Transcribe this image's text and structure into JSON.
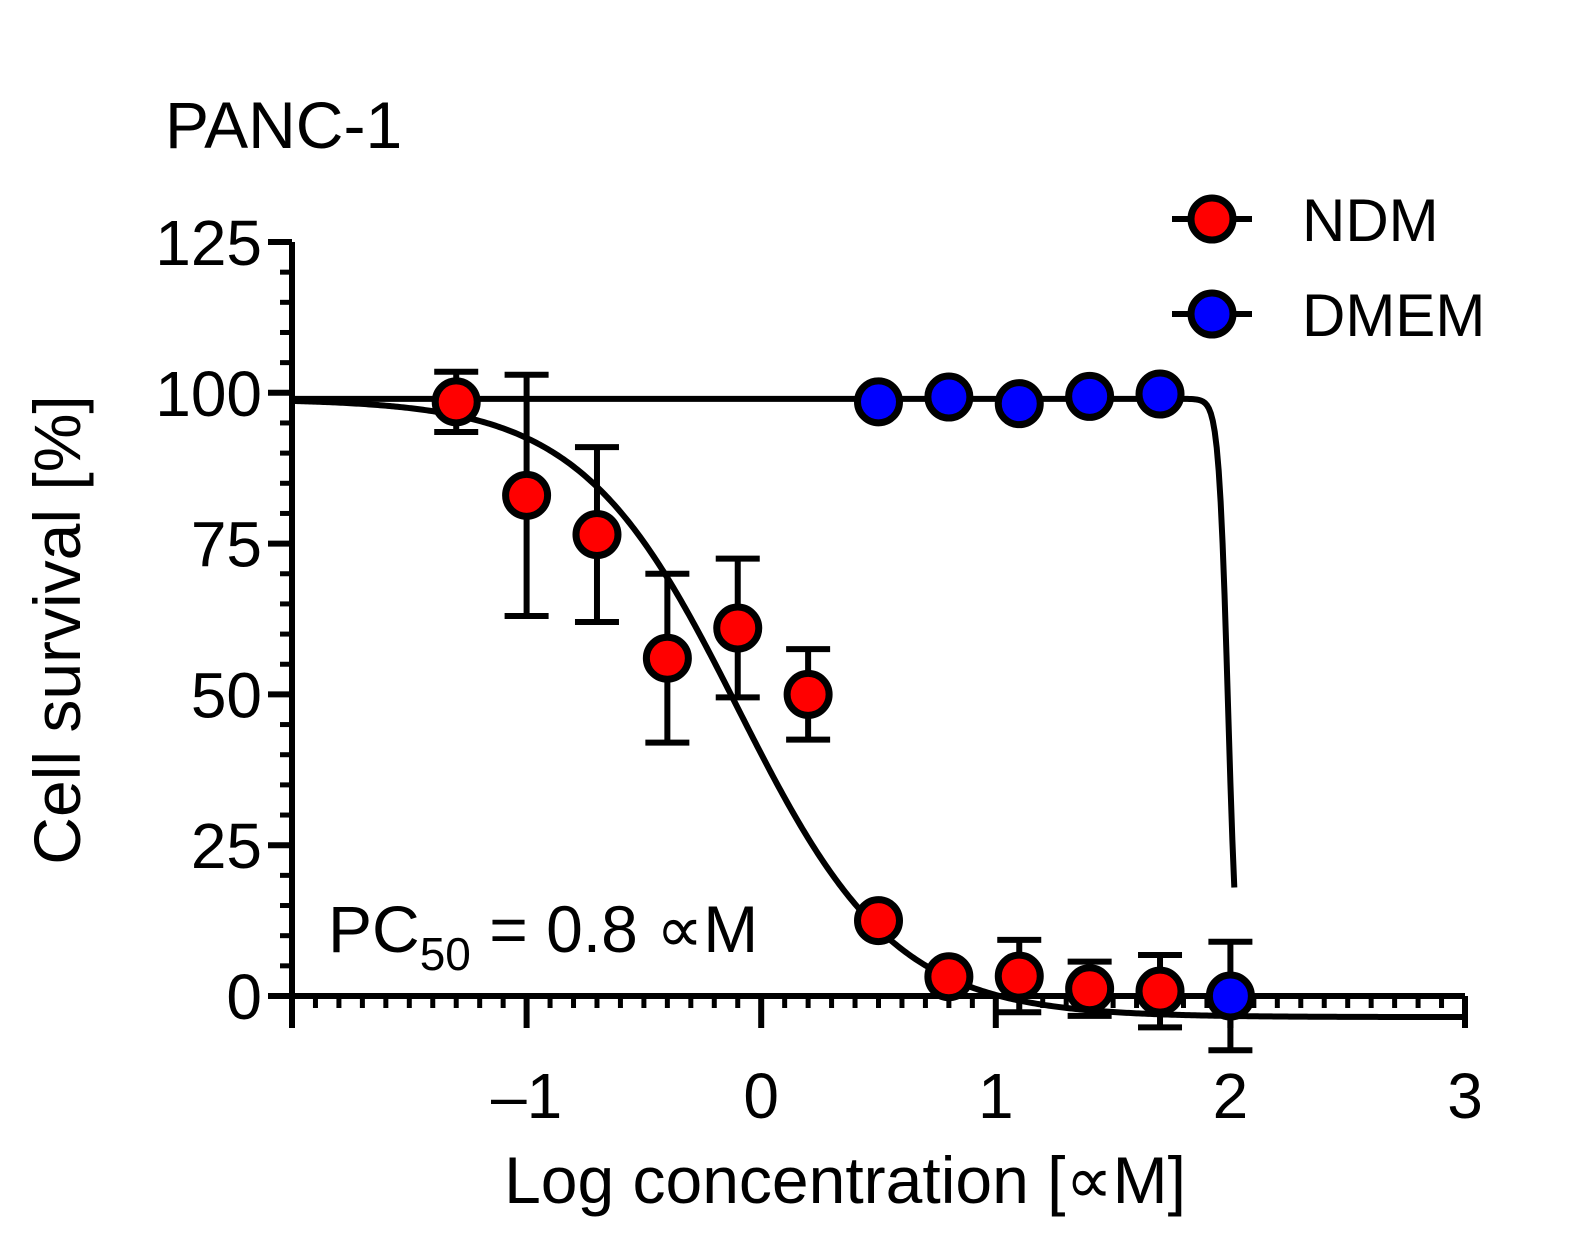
{
  "chart_data": {
    "type": "scatter",
    "title": "PANC-1",
    "xlabel": "Log concentration [∝M]",
    "ylabel": "Cell survival [%]",
    "xlim": [
      -2.0,
      3.0
    ],
    "ylim": [
      0,
      125
    ],
    "x_tick_values": [
      -1,
      0,
      1,
      2,
      3
    ],
    "x_tick_labels": [
      "–1",
      "0",
      "1",
      "2",
      "3"
    ],
    "y_tick_values": [
      0,
      25,
      50,
      75,
      100,
      125
    ],
    "y_tick_labels": [
      "0",
      "25",
      "50",
      "75",
      "100",
      "125"
    ],
    "legend_position": "top-right",
    "annotation": {
      "prefix": "PC",
      "subscript": "50",
      "suffix": " = 0.8 ∝M"
    },
    "series": [
      {
        "name": "NDM",
        "color": "#ff0000",
        "points": [
          {
            "x": -1.3,
            "y": 98.5,
            "err": 5
          },
          {
            "x": -1.0,
            "y": 83,
            "err": 20
          },
          {
            "x": -0.7,
            "y": 76.5,
            "err": 14.5
          },
          {
            "x": -0.4,
            "y": 56,
            "err": 14
          },
          {
            "x": -0.1,
            "y": 61,
            "err": 11.5
          },
          {
            "x": 0.2,
            "y": 50,
            "err": 7.5
          },
          {
            "x": 0.5,
            "y": 12.5,
            "err": 0
          },
          {
            "x": 0.8,
            "y": 3.2,
            "err": 0
          },
          {
            "x": 1.1,
            "y": 3.3,
            "err": 6
          },
          {
            "x": 1.4,
            "y": 1.2,
            "err": 4.5
          },
          {
            "x": 1.7,
            "y": 0.8,
            "err": 6
          }
        ],
        "fit": {
          "top": 99,
          "bottom": -3.5,
          "log_ec50": -0.1,
          "hill": 1.3
        }
      },
      {
        "name": "DMEM",
        "color": "#0000ff",
        "points": [
          {
            "x": 0.5,
            "y": 98.5,
            "err": 0
          },
          {
            "x": 0.8,
            "y": 99.3,
            "err": 0
          },
          {
            "x": 1.1,
            "y": 98.2,
            "err": 0
          },
          {
            "x": 1.4,
            "y": 99.4,
            "err": 0
          },
          {
            "x": 1.7,
            "y": 99.8,
            "err": 0
          },
          {
            "x": 2.0,
            "y": 0,
            "err": 9
          }
        ],
        "fit": {
          "top": 99,
          "bottom": -3,
          "log_ec50": 1.99,
          "hill": 22
        }
      }
    ]
  }
}
